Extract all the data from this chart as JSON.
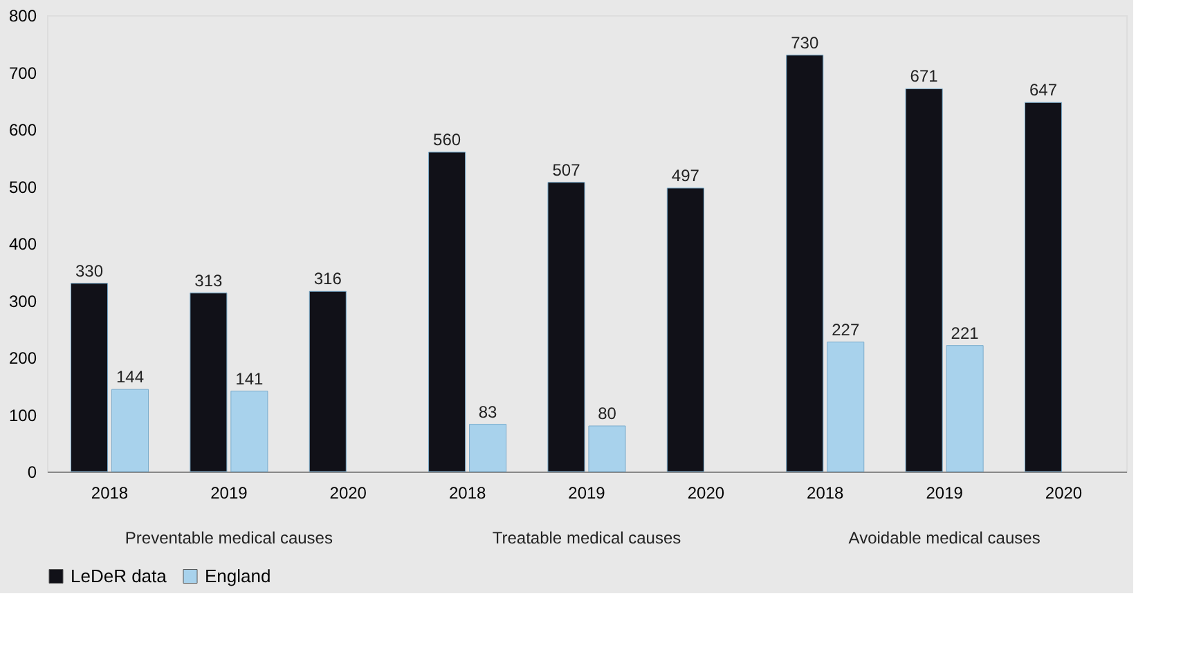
{
  "chart_data": {
    "type": "bar",
    "categories": [
      "2018",
      "2019",
      "2020",
      "2018",
      "2019",
      "2020",
      "2018",
      "2019",
      "2020"
    ],
    "series": [
      {
        "name": "LeDeR data",
        "color": "#111118",
        "values": [
          330,
          313,
          316,
          560,
          507,
          497,
          730,
          671,
          647
        ]
      },
      {
        "name": "England",
        "color": "#a8d2ec",
        "values": [
          144,
          141,
          null,
          83,
          80,
          null,
          227,
          221,
          null
        ]
      }
    ],
    "annotations": [
      "Preventable medical causes",
      "Treatable medical causes",
      "Avoidable medical causes"
    ],
    "ylim": [
      0,
      800
    ],
    "yticks": [
      0,
      100,
      200,
      300,
      400,
      500,
      600,
      700,
      800
    ],
    "grid": false,
    "data_labels": true,
    "legend": "bottom"
  }
}
